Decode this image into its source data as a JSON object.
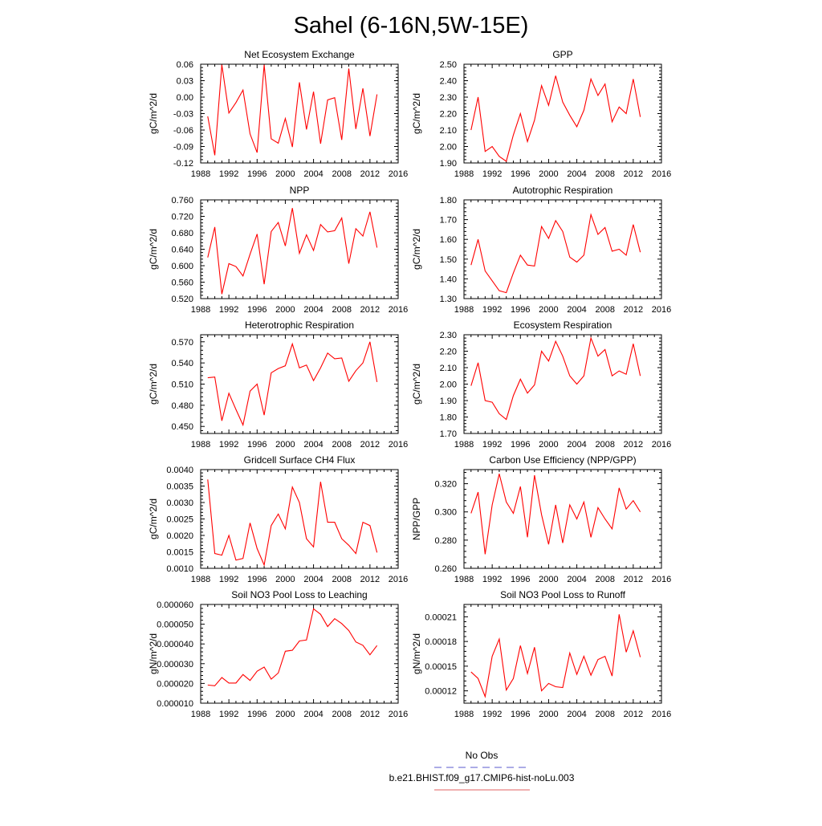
{
  "figure": {
    "title": "Sahel (6-16N,5W-15E)",
    "legend": {
      "entries": [
        {
          "label": "No Obs",
          "color": "#5a5acd",
          "dash": "dashed"
        },
        {
          "label": "b.e21.BHIST.f09_g17.CMIP6-hist-noLu.003",
          "color": "#e06060",
          "dash": "solid"
        }
      ]
    },
    "line_color": "#ff0000"
  },
  "chart_data": [
    {
      "type": "line",
      "title": "Net Ecosystem Exchange",
      "ylabel": "gC/m^2/d",
      "xlim": [
        1988,
        2016
      ],
      "xticks": [
        "1988",
        "1992",
        "1996",
        "2000",
        "2004",
        "2008",
        "2012",
        "2016"
      ],
      "ylim": [
        -0.12,
        0.06
      ],
      "yticks": [
        "0.06",
        "0.03",
        "0.00",
        "-0.03",
        "-0.06",
        "-0.09",
        "-0.12"
      ],
      "x": [
        1989,
        1990,
        1991,
        1992,
        1993,
        1994,
        1995,
        1996,
        1997,
        1998,
        1999,
        2000,
        2001,
        2002,
        2003,
        2004,
        2005,
        2006,
        2007,
        2008,
        2009,
        2010,
        2011,
        2012,
        2013
      ],
      "values": [
        -0.035,
        -0.106,
        0.059,
        -0.029,
        -0.01,
        0.013,
        -0.067,
        -0.101,
        0.059,
        -0.076,
        -0.084,
        -0.039,
        -0.091,
        0.027,
        -0.059,
        0.01,
        -0.085,
        -0.005,
        -0.001,
        -0.078,
        0.052,
        -0.058,
        0.016,
        -0.071,
        0.005
      ]
    },
    {
      "type": "line",
      "title": "GPP",
      "ylabel": "gC/m^2/d",
      "xlim": [
        1988,
        2016
      ],
      "xticks": [
        "1988",
        "1992",
        "1996",
        "2000",
        "2004",
        "2008",
        "2012",
        "2016"
      ],
      "ylim": [
        1.9,
        2.5
      ],
      "yticks": [
        "2.50",
        "2.40",
        "2.30",
        "2.20",
        "2.10",
        "2.00",
        "1.90"
      ],
      "x": [
        1989,
        1990,
        1991,
        1992,
        1993,
        1994,
        1995,
        1996,
        1997,
        1998,
        1999,
        2000,
        2001,
        2002,
        2003,
        2004,
        2005,
        2006,
        2007,
        2008,
        2009,
        2010,
        2011,
        2012,
        2013
      ],
      "values": [
        2.1,
        2.3,
        1.97,
        2.0,
        1.94,
        1.91,
        2.07,
        2.2,
        2.03,
        2.16,
        2.37,
        2.25,
        2.43,
        2.27,
        2.19,
        2.12,
        2.22,
        2.41,
        2.31,
        2.38,
        2.15,
        2.24,
        2.2,
        2.41,
        2.18
      ]
    },
    {
      "type": "line",
      "title": "NPP",
      "ylabel": "gC/m^2/d",
      "xlim": [
        1988,
        2016
      ],
      "xticks": [
        "1988",
        "1992",
        "1996",
        "2000",
        "2004",
        "2008",
        "2012",
        "2016"
      ],
      "ylim": [
        0.52,
        0.76
      ],
      "yticks": [
        "0.760",
        "0.720",
        "0.680",
        "0.640",
        "0.600",
        "0.560",
        "0.520"
      ],
      "x": [
        1989,
        1990,
        1991,
        1992,
        1993,
        1994,
        1995,
        1996,
        1997,
        1998,
        1999,
        2000,
        2001,
        2002,
        2003,
        2004,
        2005,
        2006,
        2007,
        2008,
        2009,
        2010,
        2011,
        2012,
        2013
      ],
      "values": [
        0.62,
        0.694,
        0.531,
        0.605,
        0.598,
        0.575,
        0.628,
        0.677,
        0.555,
        0.683,
        0.705,
        0.648,
        0.74,
        0.63,
        0.675,
        0.637,
        0.7,
        0.682,
        0.685,
        0.716,
        0.605,
        0.69,
        0.672,
        0.731,
        0.644
      ]
    },
    {
      "type": "line",
      "title": "Autotrophic Respiration",
      "ylabel": "gC/m^2/d",
      "xlim": [
        1988,
        2016
      ],
      "xticks": [
        "1988",
        "1992",
        "1996",
        "2000",
        "2004",
        "2008",
        "2012",
        "2016"
      ],
      "ylim": [
        1.3,
        1.8
      ],
      "yticks": [
        "1.80",
        "1.70",
        "1.60",
        "1.50",
        "1.40",
        "1.30"
      ],
      "x": [
        1989,
        1990,
        1991,
        1992,
        1993,
        1994,
        1995,
        1996,
        1997,
        1998,
        1999,
        2000,
        2001,
        2002,
        2003,
        2004,
        2005,
        2006,
        2007,
        2008,
        2009,
        2010,
        2011,
        2012,
        2013
      ],
      "values": [
        1.47,
        1.6,
        1.44,
        1.39,
        1.34,
        1.33,
        1.43,
        1.52,
        1.47,
        1.465,
        1.665,
        1.605,
        1.695,
        1.64,
        1.51,
        1.485,
        1.52,
        1.725,
        1.625,
        1.66,
        1.54,
        1.55,
        1.52,
        1.675,
        1.535
      ]
    },
    {
      "type": "line",
      "title": "Heterotrophic Respiration",
      "ylabel": "gC/m^2/d",
      "xlim": [
        1988,
        2016
      ],
      "xticks": [
        "1988",
        "1992",
        "1996",
        "2000",
        "2004",
        "2008",
        "2012",
        "2016"
      ],
      "ylim": [
        0.44,
        0.58
      ],
      "yticks": [
        "0.570",
        "0.540",
        "0.510",
        "0.480",
        "0.450"
      ],
      "x": [
        1989,
        1990,
        1991,
        1992,
        1993,
        1994,
        1995,
        1996,
        1997,
        1998,
        1999,
        2000,
        2001,
        2002,
        2003,
        2004,
        2005,
        2006,
        2007,
        2008,
        2009,
        2010,
        2011,
        2012,
        2013
      ],
      "values": [
        0.519,
        0.52,
        0.458,
        0.497,
        0.474,
        0.452,
        0.5,
        0.51,
        0.466,
        0.526,
        0.532,
        0.536,
        0.567,
        0.533,
        0.537,
        0.515,
        0.533,
        0.554,
        0.546,
        0.547,
        0.514,
        0.529,
        0.54,
        0.57,
        0.513
      ]
    },
    {
      "type": "line",
      "title": "Ecosystem Respiration",
      "ylabel": "gC/m^2/d",
      "xlim": [
        1988,
        2016
      ],
      "xticks": [
        "1988",
        "1992",
        "1996",
        "2000",
        "2004",
        "2008",
        "2012",
        "2016"
      ],
      "ylim": [
        1.7,
        2.3
      ],
      "yticks": [
        "2.30",
        "2.20",
        "2.10",
        "2.00",
        "1.90",
        "1.80",
        "1.70"
      ],
      "x": [
        1989,
        1990,
        1991,
        1992,
        1993,
        1994,
        1995,
        1996,
        1997,
        1998,
        1999,
        2000,
        2001,
        2002,
        2003,
        2004,
        2005,
        2006,
        2007,
        2008,
        2009,
        2010,
        2011,
        2012,
        2013
      ],
      "values": [
        1.99,
        2.13,
        1.9,
        1.89,
        1.82,
        1.785,
        1.93,
        2.03,
        1.945,
        1.995,
        2.2,
        2.14,
        2.26,
        2.17,
        2.05,
        2.0,
        2.05,
        2.28,
        2.17,
        2.21,
        2.05,
        2.08,
        2.06,
        2.245,
        2.05
      ]
    },
    {
      "type": "line",
      "title": "Gridcell Surface CH4 Flux",
      "ylabel": "gC/m^2/d",
      "xlim": [
        1988,
        2016
      ],
      "xticks": [
        "1988",
        "1992",
        "1996",
        "2000",
        "2004",
        "2008",
        "2012",
        "2016"
      ],
      "ylim": [
        0.001,
        0.004
      ],
      "yticks": [
        "0.0040",
        "0.0035",
        "0.0030",
        "0.0025",
        "0.0020",
        "0.0015",
        "0.0010"
      ],
      "x": [
        1989,
        1990,
        1991,
        1992,
        1993,
        1994,
        1995,
        1996,
        1997,
        1998,
        1999,
        2000,
        2001,
        2002,
        2003,
        2004,
        2005,
        2006,
        2007,
        2008,
        2009,
        2010,
        2011,
        2012,
        2013
      ],
      "values": [
        0.0037,
        0.00145,
        0.0014,
        0.002,
        0.00125,
        0.0013,
        0.00238,
        0.0016,
        0.0011,
        0.0023,
        0.00265,
        0.0022,
        0.00347,
        0.003,
        0.0019,
        0.00165,
        0.00363,
        0.0024,
        0.0024,
        0.0019,
        0.0017,
        0.00145,
        0.0024,
        0.0023,
        0.00148
      ]
    },
    {
      "type": "line",
      "title": "Carbon Use Efficiency (NPP/GPP)",
      "ylabel": "NPP/GPP",
      "xlim": [
        1988,
        2016
      ],
      "xticks": [
        "1988",
        "1992",
        "1996",
        "2000",
        "2004",
        "2008",
        "2012",
        "2016"
      ],
      "ylim": [
        0.26,
        0.33
      ],
      "yticks": [
        "0.320",
        "0.300",
        "0.280",
        "0.260"
      ],
      "x": [
        1989,
        1990,
        1991,
        1992,
        1993,
        1994,
        1995,
        1996,
        1997,
        1998,
        1999,
        2000,
        2001,
        2002,
        2003,
        2004,
        2005,
        2006,
        2007,
        2008,
        2009,
        2010,
        2011,
        2012,
        2013
      ],
      "values": [
        0.299,
        0.314,
        0.27,
        0.305,
        0.327,
        0.307,
        0.299,
        0.318,
        0.282,
        0.326,
        0.298,
        0.277,
        0.305,
        0.278,
        0.305,
        0.295,
        0.307,
        0.282,
        0.303,
        0.295,
        0.288,
        0.317,
        0.302,
        0.308,
        0.3
      ]
    },
    {
      "type": "line",
      "title": "Soil NO3 Pool Loss to Leaching",
      "ylabel": "gN/m^2/d",
      "xlim": [
        1988,
        2016
      ],
      "xticks": [
        "1988",
        "1992",
        "1996",
        "2000",
        "2004",
        "2008",
        "2012",
        "2016"
      ],
      "ylim": [
        1e-05,
        6e-05
      ],
      "yticks": [
        "0.000060",
        "0.000050",
        "0.000040",
        "0.000030",
        "0.000020",
        "0.000010"
      ],
      "x": [
        1989,
        1990,
        1991,
        1992,
        1993,
        1994,
        1995,
        1996,
        1997,
        1998,
        1999,
        2000,
        2001,
        2002,
        2003,
        2004,
        2005,
        2006,
        2007,
        2008,
        2009,
        2010,
        2011,
        2012,
        2013
      ],
      "values": [
        1.92e-05,
        1.88e-05,
        2.3e-05,
        2.02e-05,
        2.02e-05,
        2.45e-05,
        2.15e-05,
        2.62e-05,
        2.83e-05,
        2.22e-05,
        2.53e-05,
        3.63e-05,
        3.68e-05,
        4.15e-05,
        4.2e-05,
        5.78e-05,
        5.5e-05,
        4.88e-05,
        5.28e-05,
        5.03e-05,
        4.68e-05,
        4.1e-05,
        3.93e-05,
        3.45e-05,
        3.92e-05
      ]
    },
    {
      "type": "line",
      "title": "Soil NO3 Pool Loss to Runoff",
      "ylabel": "gN/m^2/d",
      "xlim": [
        1988,
        2016
      ],
      "xticks": [
        "1988",
        "1992",
        "1996",
        "2000",
        "2004",
        "2008",
        "2012",
        "2016"
      ],
      "ylim": [
        0.000105,
        0.000225
      ],
      "yticks": [
        "0.00021",
        "0.00018",
        "0.00015",
        "0.00012"
      ],
      "x": [
        1989,
        1990,
        1991,
        1992,
        1993,
        1994,
        1995,
        1996,
        1997,
        1998,
        1999,
        2000,
        2001,
        2002,
        2003,
        2004,
        2005,
        2006,
        2007,
        2008,
        2009,
        2010,
        2011,
        2012,
        2013
      ],
      "values": [
        0.000143,
        0.000135,
        0.000113,
        0.000162,
        0.000183,
        0.000121,
        0.000135,
        0.000175,
        0.000141,
        0.000173,
        0.00012,
        0.000129,
        0.000125,
        0.000124,
        0.000166,
        0.00014,
        0.000162,
        0.000139,
        0.000158,
        0.000162,
        0.000138,
        0.000213,
        0.000167,
        0.000193,
        0.000161
      ]
    }
  ]
}
